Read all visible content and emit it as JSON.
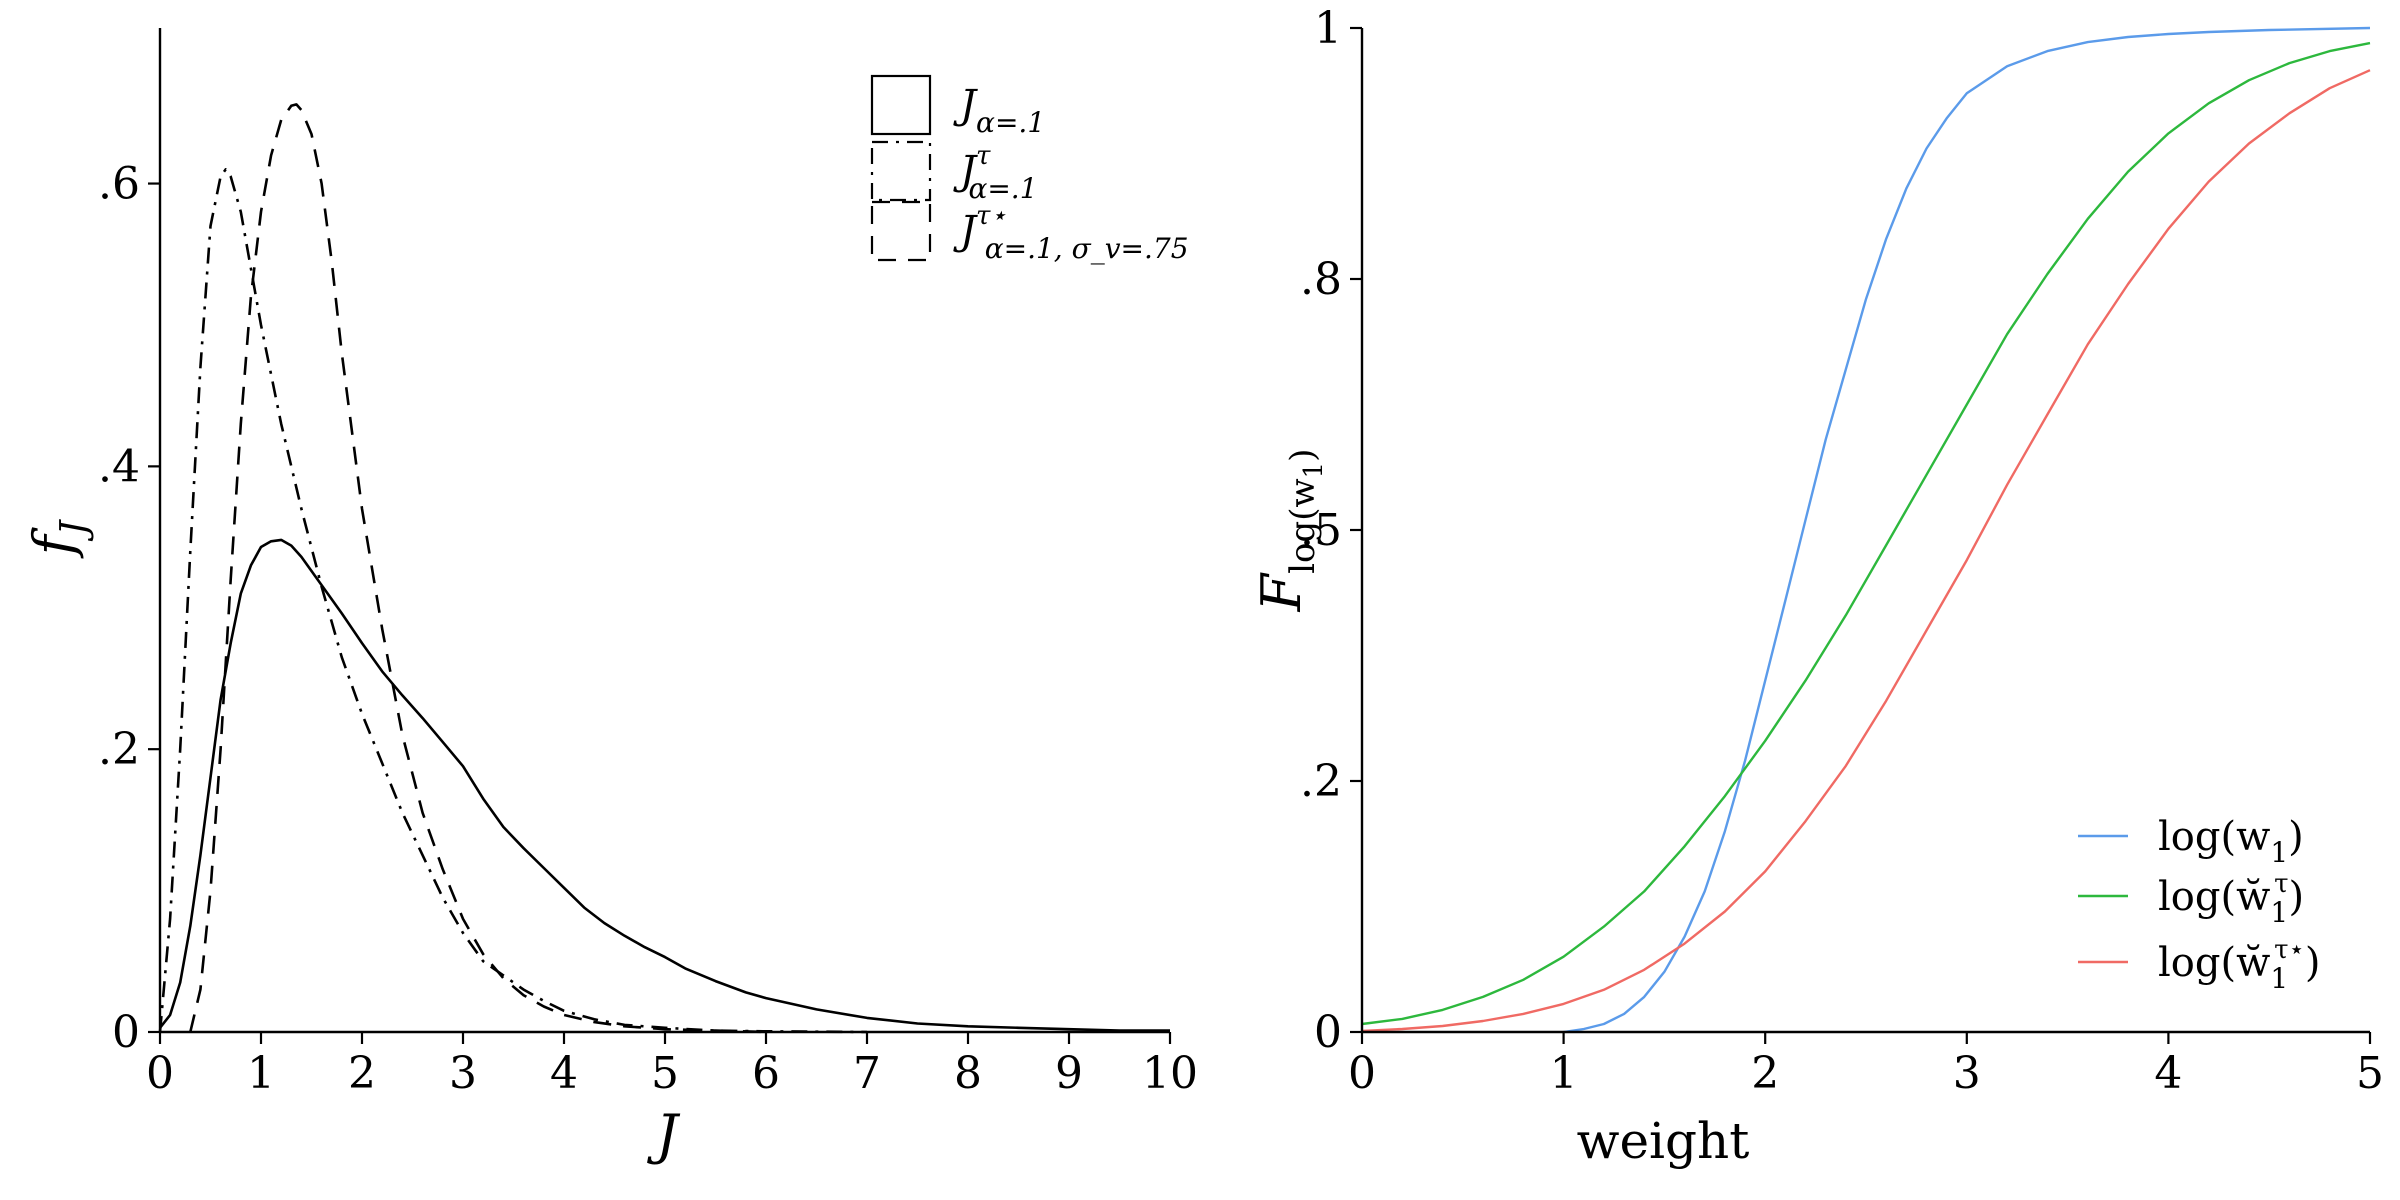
{
  "chart_data": [
    {
      "type": "line",
      "title": "",
      "xlabel": "J",
      "ylabel": "f_J",
      "xlim": [
        0,
        10
      ],
      "ylim": [
        0,
        0.71
      ],
      "x_ticks": [
        {
          "value": 0,
          "label": "0"
        },
        {
          "value": 1,
          "label": "1"
        },
        {
          "value": 2,
          "label": "2"
        },
        {
          "value": 3,
          "label": "3"
        },
        {
          "value": 4,
          "label": "4"
        },
        {
          "value": 5,
          "label": "5"
        },
        {
          "value": 6,
          "label": "6"
        },
        {
          "value": 7,
          "label": "7"
        },
        {
          "value": 8,
          "label": "8"
        },
        {
          "value": 9,
          "label": "9"
        },
        {
          "value": 10,
          "label": "10"
        }
      ],
      "y_ticks": [
        {
          "value": 0,
          "label": "0"
        },
        {
          "value": 0.2,
          "label": ".2"
        },
        {
          "value": 0.4,
          "label": ".4"
        },
        {
          "value": 0.6,
          "label": ".6"
        }
      ],
      "grid": false,
      "legend_position": "top-right",
      "series": [
        {
          "name": "J_{α=.1}",
          "legend": {
            "main": "J",
            "sub": "α=.1",
            "sup": ""
          },
          "style": "solid",
          "color": "#000000",
          "x": [
            0,
            0.1,
            0.2,
            0.3,
            0.4,
            0.5,
            0.6,
            0.7,
            0.8,
            0.9,
            1.0,
            1.1,
            1.2,
            1.3,
            1.4,
            1.5,
            1.6,
            1.8,
            2.0,
            2.2,
            2.4,
            2.6,
            2.8,
            3.0,
            3.2,
            3.4,
            3.6,
            3.8,
            4.0,
            4.2,
            4.4,
            4.6,
            4.8,
            5.0,
            5.2,
            5.5,
            5.8,
            6.0,
            6.5,
            7.0,
            7.5,
            8.0,
            8.5,
            9.0,
            9.5,
            10.0
          ],
          "y": [
            0.003,
            0.012,
            0.035,
            0.075,
            0.125,
            0.18,
            0.235,
            0.275,
            0.31,
            0.33,
            0.343,
            0.347,
            0.348,
            0.344,
            0.336,
            0.326,
            0.316,
            0.296,
            0.275,
            0.255,
            0.238,
            0.222,
            0.205,
            0.188,
            0.165,
            0.145,
            0.13,
            0.116,
            0.102,
            0.088,
            0.077,
            0.068,
            0.06,
            0.053,
            0.045,
            0.036,
            0.028,
            0.024,
            0.016,
            0.01,
            0.006,
            0.004,
            0.003,
            0.002,
            0.001,
            0.001
          ]
        },
        {
          "name": "J^τ_{α=.1}",
          "legend": {
            "main": "J",
            "sub": "α=.1",
            "sup": "τ"
          },
          "style": "dashdot",
          "color": "#000000",
          "x": [
            0,
            0.1,
            0.2,
            0.3,
            0.4,
            0.5,
            0.6,
            0.65,
            0.7,
            0.8,
            0.9,
            1.0,
            1.1,
            1.2,
            1.4,
            1.6,
            1.8,
            2.0,
            2.2,
            2.4,
            2.6,
            2.8,
            3.0,
            3.2,
            3.4,
            3.6,
            3.8,
            4.0,
            4.3,
            4.6,
            5.0,
            5.5,
            6.0,
            7.0
          ],
          "y": [
            0.0,
            0.08,
            0.2,
            0.34,
            0.47,
            0.57,
            0.605,
            0.61,
            0.605,
            0.58,
            0.54,
            0.5,
            0.465,
            0.43,
            0.37,
            0.315,
            0.265,
            0.225,
            0.19,
            0.155,
            0.125,
            0.095,
            0.07,
            0.05,
            0.04,
            0.03,
            0.022,
            0.015,
            0.009,
            0.005,
            0.003,
            0.001,
            0.0005,
            0.0
          ]
        },
        {
          "name": "J^{τ⋆}_{α=.1, σ_v=.75}",
          "legend": {
            "main": "J",
            "sub": "α=.1, σ_v=.75",
            "sup": "τ⋆"
          },
          "style": "dashed",
          "color": "#000000",
          "x": [
            0.3,
            0.4,
            0.5,
            0.6,
            0.7,
            0.8,
            0.9,
            1.0,
            1.1,
            1.2,
            1.3,
            1.35,
            1.4,
            1.5,
            1.6,
            1.7,
            1.8,
            2.0,
            2.2,
            2.4,
            2.6,
            2.8,
            3.0,
            3.2,
            3.4,
            3.6,
            3.8,
            4.0,
            4.3,
            4.6,
            5.0,
            5.5,
            6.0
          ],
          "y": [
            0.0,
            0.03,
            0.1,
            0.2,
            0.32,
            0.43,
            0.52,
            0.58,
            0.62,
            0.645,
            0.655,
            0.656,
            0.652,
            0.635,
            0.6,
            0.545,
            0.48,
            0.37,
            0.285,
            0.21,
            0.155,
            0.115,
            0.08,
            0.055,
            0.038,
            0.026,
            0.018,
            0.012,
            0.007,
            0.004,
            0.002,
            0.001,
            0.0
          ]
        }
      ]
    },
    {
      "type": "line",
      "title": "",
      "xlabel": "weight",
      "ylabel": "F_{log(w_1)}",
      "xlim": [
        0,
        5
      ],
      "ylim": [
        0,
        1
      ],
      "x_ticks": [
        {
          "value": 0,
          "label": "0"
        },
        {
          "value": 1,
          "label": "1"
        },
        {
          "value": 2,
          "label": "2"
        },
        {
          "value": 3,
          "label": "3"
        },
        {
          "value": 4,
          "label": "4"
        },
        {
          "value": 5,
          "label": "5"
        }
      ],
      "y_ticks": [
        {
          "value": 0,
          "label": "0"
        },
        {
          "value": 0.25,
          "label": ".2"
        },
        {
          "value": 0.5,
          "label": ".5"
        },
        {
          "value": 0.75,
          "label": ".8"
        },
        {
          "value": 1,
          "label": "1"
        }
      ],
      "grid": false,
      "legend_position": "bottom-right",
      "series": [
        {
          "name": "log(w_1)",
          "legend": {
            "text": "log(w",
            "sub": "1",
            "sup": "",
            "accent": "",
            "close": ")"
          },
          "color": "#5b9bea",
          "x": [
            1.0,
            1.1,
            1.2,
            1.3,
            1.4,
            1.5,
            1.6,
            1.7,
            1.8,
            1.9,
            2.0,
            2.1,
            2.2,
            2.3,
            2.4,
            2.5,
            2.6,
            2.7,
            2.8,
            2.9,
            3.0,
            3.2,
            3.4,
            3.6,
            3.8,
            4.0,
            4.2,
            4.5,
            5.0
          ],
          "y": [
            0.0,
            0.003,
            0.008,
            0.018,
            0.035,
            0.06,
            0.095,
            0.14,
            0.2,
            0.27,
            0.35,
            0.43,
            0.51,
            0.59,
            0.66,
            0.73,
            0.79,
            0.84,
            0.88,
            0.91,
            0.935,
            0.962,
            0.977,
            0.986,
            0.991,
            0.994,
            0.996,
            0.998,
            1.0
          ]
        },
        {
          "name": "log(w̆_1^τ)",
          "legend": {
            "text": "log(w̆",
            "sub": "1",
            "sup": "τ",
            "accent": "",
            "close": ")"
          },
          "color": "#2db83d",
          "x": [
            0.0,
            0.2,
            0.4,
            0.6,
            0.8,
            1.0,
            1.2,
            1.4,
            1.6,
            1.8,
            2.0,
            2.2,
            2.4,
            2.6,
            2.8,
            3.0,
            3.2,
            3.4,
            3.6,
            3.8,
            4.0,
            4.2,
            4.4,
            4.6,
            4.8,
            5.0
          ],
          "y": [
            0.008,
            0.013,
            0.022,
            0.035,
            0.052,
            0.075,
            0.105,
            0.14,
            0.185,
            0.235,
            0.29,
            0.35,
            0.415,
            0.485,
            0.555,
            0.625,
            0.695,
            0.755,
            0.81,
            0.857,
            0.895,
            0.925,
            0.948,
            0.965,
            0.977,
            0.985
          ]
        },
        {
          "name": "log(w̆_1^{τ⋆})",
          "legend": {
            "text": "log(w̆",
            "sub": "1",
            "sup": "τ⋆",
            "accent": "",
            "close": ")"
          },
          "color": "#f06a64",
          "x": [
            0.0,
            0.2,
            0.4,
            0.6,
            0.8,
            1.0,
            1.2,
            1.4,
            1.6,
            1.8,
            2.0,
            2.2,
            2.4,
            2.6,
            2.8,
            3.0,
            3.2,
            3.4,
            3.6,
            3.8,
            4.0,
            4.2,
            4.4,
            4.6,
            4.8,
            5.0
          ],
          "y": [
            0.001,
            0.003,
            0.006,
            0.011,
            0.018,
            0.028,
            0.042,
            0.062,
            0.088,
            0.12,
            0.16,
            0.21,
            0.265,
            0.33,
            0.4,
            0.47,
            0.545,
            0.615,
            0.685,
            0.745,
            0.8,
            0.847,
            0.885,
            0.915,
            0.94,
            0.958
          ]
        }
      ]
    }
  ]
}
